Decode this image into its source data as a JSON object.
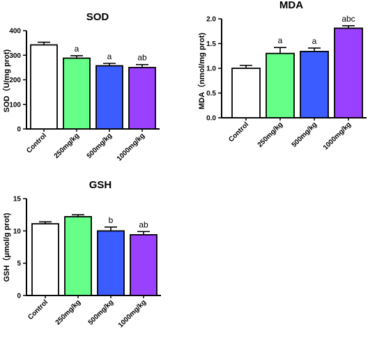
{
  "chart_data": [
    {
      "type": "bar",
      "title": "SOD",
      "ylabel": "SOD（U/mg prot)",
      "categories": [
        "Control",
        "250mg/kg",
        "500mg/kg",
        "1000mg/kg"
      ],
      "values": [
        342,
        288,
        257,
        250
      ],
      "errors": [
        11,
        10,
        10,
        12
      ],
      "annotations": [
        "",
        "a",
        "a",
        "ab"
      ],
      "colors": [
        "#ffffff",
        "#66ff88",
        "#3b5cff",
        "#9a40ff"
      ],
      "ylim": [
        0,
        400
      ],
      "yticks": [
        0,
        100,
        200,
        300,
        400
      ],
      "ytick_labels": [
        "0",
        "100",
        "200",
        "300",
        "400"
      ]
    },
    {
      "type": "bar",
      "title": "MDA",
      "ylabel": "MDA（nmol/mg prot)",
      "categories": [
        "Control",
        "250mg/kg",
        "500mg/kg",
        "1000mg/kg"
      ],
      "values": [
        1.0,
        1.3,
        1.34,
        1.81
      ],
      "errors": [
        0.06,
        0.12,
        0.07,
        0.05
      ],
      "annotations": [
        "",
        "a",
        "a",
        "abc"
      ],
      "colors": [
        "#ffffff",
        "#66ff88",
        "#3b5cff",
        "#9a40ff"
      ],
      "ylim": [
        0,
        2.0
      ],
      "yticks": [
        0,
        0.5,
        1.0,
        1.5,
        2.0
      ],
      "ytick_labels": [
        "0.0",
        "0.5",
        "1.0",
        "1.5",
        "2.0"
      ]
    },
    {
      "type": "bar",
      "title": "GSH",
      "ylabel": "GSH（μmol/g prot)",
      "categories": [
        "Control",
        "250mg/kg",
        "500mg/kg",
        "1000mg/kg"
      ],
      "values": [
        11.1,
        12.2,
        10.0,
        9.4
      ],
      "errors": [
        0.3,
        0.3,
        0.6,
        0.5
      ],
      "annotations": [
        "",
        "",
        "b",
        "ab"
      ],
      "colors": [
        "#ffffff",
        "#66ff88",
        "#3b5cff",
        "#9a40ff"
      ],
      "ylim": [
        0,
        15
      ],
      "yticks": [
        0,
        5,
        10,
        15
      ],
      "ytick_labels": [
        "0",
        "5",
        "10",
        "15"
      ]
    }
  ]
}
